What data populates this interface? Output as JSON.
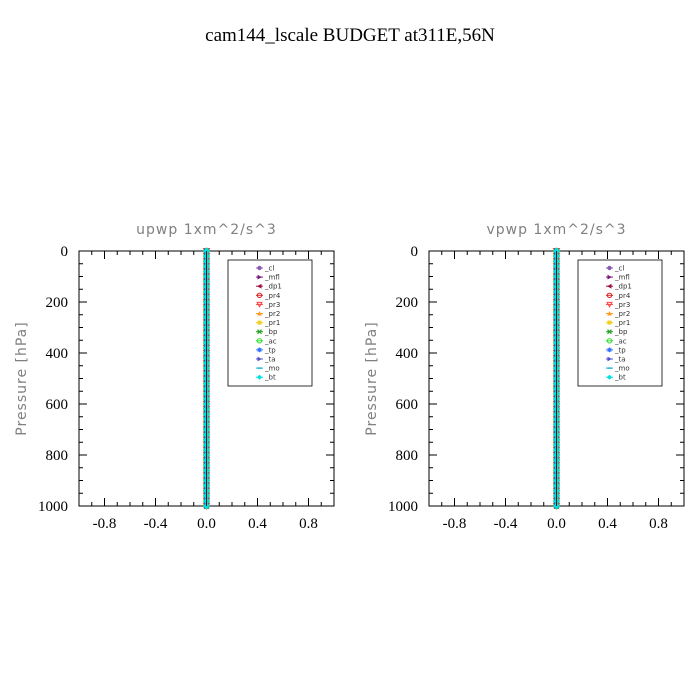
{
  "figure_title": "cam144_lscale  BUDGET at311E,56N",
  "chart_data": [
    {
      "type": "line",
      "title": "upwp   1xm^2/s^3",
      "ylabel": "Pressure  [hPa]",
      "xlabel": "",
      "xlim": [
        -1.0,
        1.0
      ],
      "ylim": [
        1000,
        0
      ],
      "y_inverted": true,
      "xticks": [
        -0.8,
        -0.4,
        0.0,
        0.4,
        0.8
      ],
      "xticklabels": [
        "-0.8",
        "-0.4",
        "0.0",
        "0.4",
        "0.8"
      ],
      "yticks": [
        0,
        200,
        400,
        600,
        800,
        1000
      ],
      "yticklabels": [
        "0",
        "200",
        "400",
        "600",
        "800",
        "1000"
      ],
      "grid": false,
      "legend_position": "top-right",
      "pressure_levels": [
        0,
        20,
        40,
        60,
        80,
        100,
        120,
        140,
        160,
        180,
        200,
        220,
        240,
        260,
        280,
        300,
        320,
        340,
        360,
        380,
        400,
        420,
        440,
        460,
        480,
        500,
        520,
        540,
        560,
        580,
        600,
        620,
        640,
        660,
        680,
        700,
        720,
        740,
        760,
        780,
        800,
        820,
        840,
        860,
        880,
        900,
        920,
        940,
        960,
        980,
        1000
      ],
      "series": [
        {
          "name": "_cl",
          "color": "#8a5ab4",
          "marker": "circle",
          "value_all_levels": 0.0
        },
        {
          "name": "_mfl",
          "color": "#7a1a7a",
          "marker": "triangle-right",
          "value_all_levels": 0.0
        },
        {
          "name": "_dp1",
          "color": "#a01040",
          "marker": "triangle-left",
          "value_all_levels": 0.0
        },
        {
          "name": "_pr4",
          "color": "#e02020",
          "marker": "circle-open",
          "value_all_levels": 0.0
        },
        {
          "name": "_pr3",
          "color": "#ff4040",
          "marker": "triangle-down",
          "value_all_levels": 0.0
        },
        {
          "name": "_pr2",
          "color": "#ff9a20",
          "marker": "triangle-up",
          "value_all_levels": 0.0
        },
        {
          "name": "_pr1",
          "color": "#f0d020",
          "marker": "square",
          "value_all_levels": 0.0
        },
        {
          "name": "_bp",
          "color": "#20a020",
          "marker": "x",
          "value_all_levels": 0.0
        },
        {
          "name": "_ac",
          "color": "#30e030",
          "marker": "circle-open",
          "value_all_levels": 0.0
        },
        {
          "name": "_tp",
          "color": "#3070ff",
          "marker": "star",
          "value_all_levels": 0.0
        },
        {
          "name": "_ta",
          "color": "#5050d0",
          "marker": "triangle-right",
          "value_all_levels": 0.0
        },
        {
          "name": "_mo",
          "color": "#20b0e0",
          "marker": "dash",
          "value_all_levels": 0.0
        },
        {
          "name": "_bt",
          "color": "#00e0e0",
          "marker": "diamond",
          "value_all_levels": 0.0
        }
      ]
    },
    {
      "type": "line",
      "title": "vpwp   1xm^2/s^3",
      "ylabel": "Pressure  [hPa]",
      "xlabel": "",
      "xlim": [
        -1.0,
        1.0
      ],
      "ylim": [
        1000,
        0
      ],
      "y_inverted": true,
      "xticks": [
        -0.8,
        -0.4,
        0.0,
        0.4,
        0.8
      ],
      "xticklabels": [
        "-0.8",
        "-0.4",
        "0.0",
        "0.4",
        "0.8"
      ],
      "yticks": [
        0,
        200,
        400,
        600,
        800,
        1000
      ],
      "yticklabels": [
        "0",
        "200",
        "400",
        "600",
        "800",
        "1000"
      ],
      "grid": false,
      "legend_position": "top-right",
      "pressure_levels": [
        0,
        20,
        40,
        60,
        80,
        100,
        120,
        140,
        160,
        180,
        200,
        220,
        240,
        260,
        280,
        300,
        320,
        340,
        360,
        380,
        400,
        420,
        440,
        460,
        480,
        500,
        520,
        540,
        560,
        580,
        600,
        620,
        640,
        660,
        680,
        700,
        720,
        740,
        760,
        780,
        800,
        820,
        840,
        860,
        880,
        900,
        920,
        940,
        960,
        980,
        1000
      ],
      "series": [
        {
          "name": "_cl",
          "color": "#8a5ab4",
          "marker": "circle",
          "value_all_levels": 0.0
        },
        {
          "name": "_mfl",
          "color": "#7a1a7a",
          "marker": "triangle-right",
          "value_all_levels": 0.0
        },
        {
          "name": "_dp1",
          "color": "#a01040",
          "marker": "triangle-left",
          "value_all_levels": 0.0
        },
        {
          "name": "_pr4",
          "color": "#e02020",
          "marker": "circle-open",
          "value_all_levels": 0.0
        },
        {
          "name": "_pr3",
          "color": "#ff4040",
          "marker": "triangle-down",
          "value_all_levels": 0.0
        },
        {
          "name": "_pr2",
          "color": "#ff9a20",
          "marker": "triangle-up",
          "value_all_levels": 0.0
        },
        {
          "name": "_pr1",
          "color": "#f0d020",
          "marker": "square",
          "value_all_levels": 0.0
        },
        {
          "name": "_bp",
          "color": "#20a020",
          "marker": "x",
          "value_all_levels": 0.0
        },
        {
          "name": "_ac",
          "color": "#30e030",
          "marker": "circle-open",
          "value_all_levels": 0.0
        },
        {
          "name": "_tp",
          "color": "#3070ff",
          "marker": "star",
          "value_all_levels": 0.0
        },
        {
          "name": "_ta",
          "color": "#5050d0",
          "marker": "triangle-right",
          "value_all_levels": 0.0
        },
        {
          "name": "_mo",
          "color": "#20b0e0",
          "marker": "dash",
          "value_all_levels": 0.0
        },
        {
          "name": "_bt",
          "color": "#00e0e0",
          "marker": "diamond",
          "value_all_levels": 0.0
        }
      ]
    }
  ]
}
